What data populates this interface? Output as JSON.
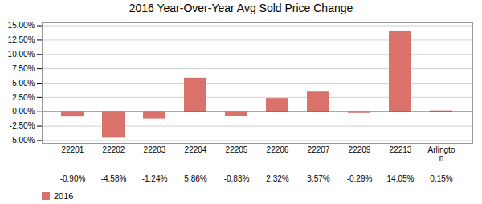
{
  "chart_data": {
    "type": "bar",
    "title": "2016 Year-Over-Year Avg Sold Price Change",
    "categories": [
      "22201",
      "22202",
      "22203",
      "22204",
      "22205",
      "22206",
      "22207",
      "22209",
      "22213",
      "Arlingto\nn"
    ],
    "series": [
      {
        "name": "2016",
        "color": "#d9726b",
        "values": [
          -0.9,
          -4.58,
          -1.24,
          5.86,
          -0.83,
          2.32,
          3.57,
          -0.29,
          14.05,
          0.15
        ],
        "value_labels": [
          "-0.90%",
          "-4.58%",
          "-1.24%",
          "5.86%",
          "-0.83%",
          "2.32%",
          "3.57%",
          "-0.29%",
          "14.05%",
          "0.15%"
        ]
      }
    ],
    "ylim": [
      -5.5,
      15.5
    ],
    "yticks": [
      {
        "value": -5.0,
        "label": "-5.00%"
      },
      {
        "value": -2.5,
        "label": "-2.50%"
      },
      {
        "value": 0.0,
        "label": "0.00%"
      },
      {
        "value": 2.5,
        "label": "2.50%"
      },
      {
        "value": 5.0,
        "label": "5.00%"
      },
      {
        "value": 7.5,
        "label": "7.50%"
      },
      {
        "value": 10.0,
        "label": "10.00%"
      },
      {
        "value": 12.5,
        "label": "12.50%"
      },
      {
        "value": 15.0,
        "label": "15.00%"
      }
    ],
    "grid": true,
    "legend": "bottom"
  }
}
